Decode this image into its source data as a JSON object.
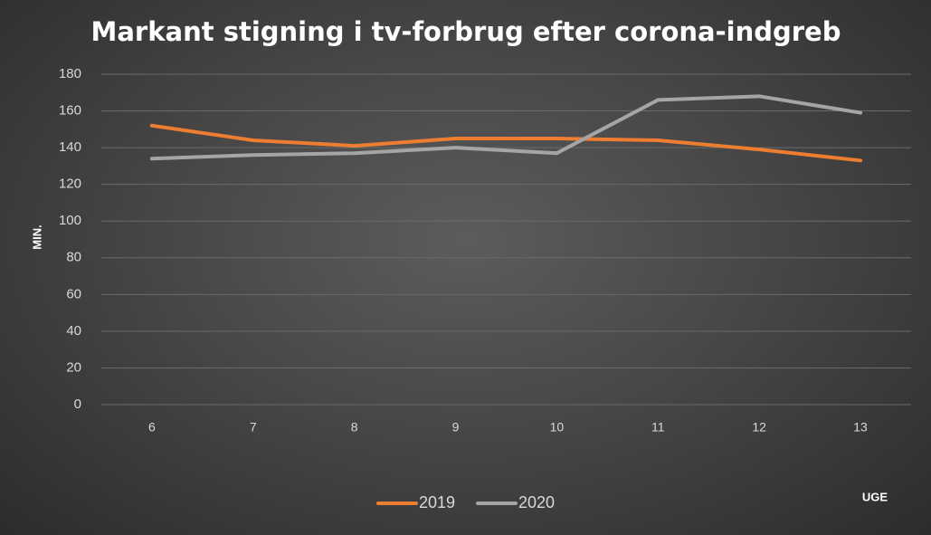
{
  "chart_data": {
    "type": "line",
    "title": "Markant stigning i tv-forbrug efter corona-indgreb",
    "y_label": "MIN.",
    "x_label": "UGE",
    "categories": [
      "6",
      "7",
      "8",
      "9",
      "10",
      "11",
      "12",
      "13"
    ],
    "series": [
      {
        "name": "2019",
        "color": "#ed7d31",
        "values": [
          152,
          144,
          141,
          145,
          145,
          144,
          139,
          133
        ]
      },
      {
        "name": "2020",
        "color": "#a5a5a5",
        "values": [
          134,
          136,
          137,
          140,
          137,
          166,
          168,
          159
        ]
      }
    ],
    "ylim": [
      0,
      180
    ],
    "yticks": [
      0,
      20,
      40,
      60,
      80,
      100,
      120,
      140,
      160,
      180
    ],
    "grid": true,
    "legend": "bottom"
  }
}
